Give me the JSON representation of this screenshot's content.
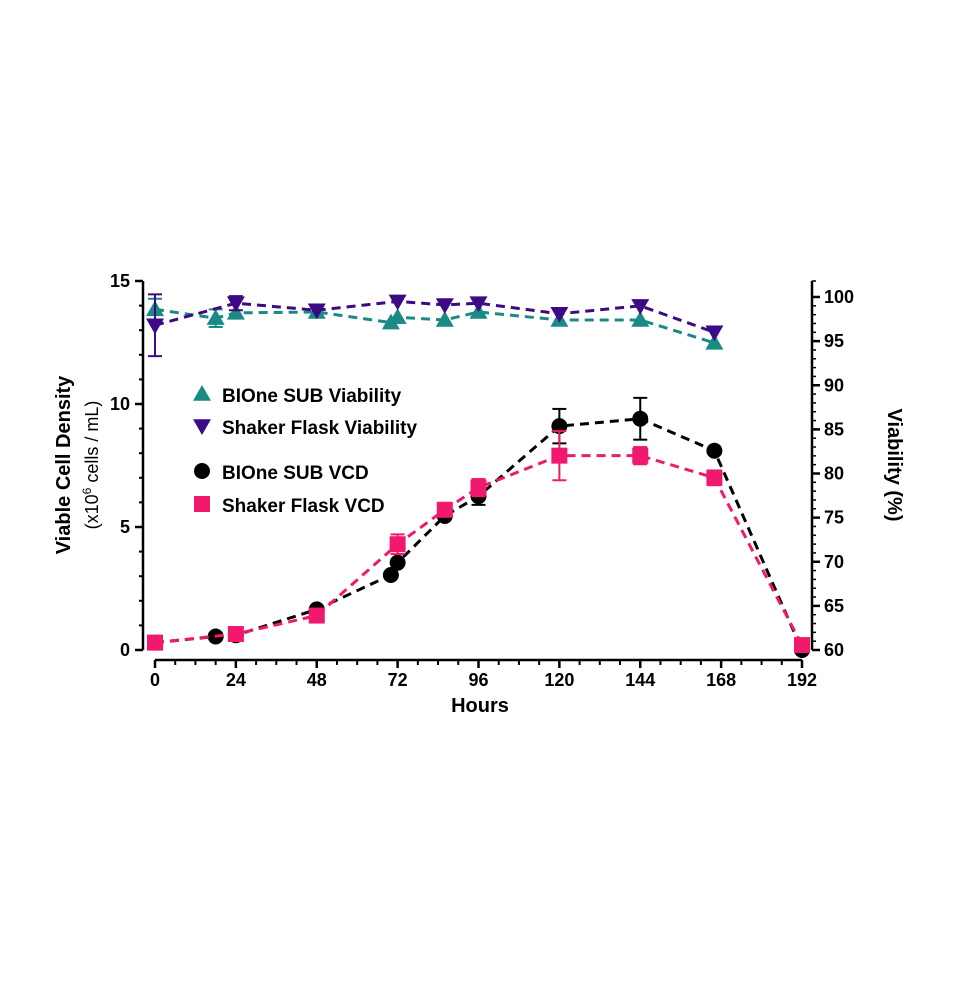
{
  "chart_data": {
    "type": "line",
    "xlabel": "Hours",
    "ylabel": "Viable Cell  Density",
    "ylabel_sub_prefix": "(x10",
    "ylabel_sub_sup": "6",
    "ylabel_sub_suffix": " cells / mL)",
    "y2label": "Viability (%)",
    "xlim": [
      0,
      192
    ],
    "ylim": [
      0,
      15
    ],
    "y2lim": [
      60,
      100
    ],
    "xticks": [
      0,
      24,
      48,
      72,
      96,
      120,
      144,
      168,
      192
    ],
    "yticks": [
      0,
      5,
      10,
      15
    ],
    "y2ticks": [
      60,
      65,
      70,
      75,
      80,
      85,
      90,
      95,
      100
    ],
    "grid": false,
    "legend_placement": "upper-left",
    "series": [
      {
        "name": "BIOne SUB Viability",
        "axis": "right",
        "marker": "triangle-up",
        "color": "#1a8a84",
        "x": [
          0,
          18,
          24,
          48,
          70,
          72,
          86,
          96,
          120,
          144,
          166
        ],
        "y": [
          98.6,
          97.6,
          98.2,
          98.3,
          97.1,
          97.7,
          97.4,
          98.3,
          97.4,
          97.4,
          94.8
        ],
        "err": [
          1.2,
          1.0,
          0,
          0,
          0,
          0,
          0,
          0,
          0,
          0,
          0
        ]
      },
      {
        "name": "Shaker Flask Viability",
        "axis": "right",
        "marker": "triangle-down",
        "color": "#3d0a85",
        "x": [
          0,
          24,
          48,
          72,
          86,
          96,
          120,
          144,
          166
        ],
        "y": [
          96.8,
          99.3,
          98.5,
          99.5,
          99.1,
          99.3,
          98.1,
          99.0,
          96.0
        ],
        "err": [
          3.5,
          0.8,
          0,
          0,
          0,
          0,
          0,
          0,
          0
        ]
      },
      {
        "name": "BIOne SUB VCD",
        "axis": "left",
        "marker": "circle",
        "color": "#000000",
        "x": [
          0,
          18,
          24,
          48,
          70,
          72,
          86,
          96,
          120,
          144,
          166,
          192
        ],
        "y": [
          0.3,
          0.55,
          0.6,
          1.65,
          3.05,
          3.55,
          5.45,
          6.25,
          9.1,
          9.4,
          8.1,
          0.0
        ],
        "err": [
          0,
          0,
          0,
          0,
          0,
          0,
          0,
          0.35,
          0.7,
          0.85,
          0,
          0
        ]
      },
      {
        "name": "Shaker Flask VCD",
        "axis": "left",
        "marker": "square",
        "color": "#f0196e",
        "x": [
          0,
          24,
          48,
          72,
          86,
          96,
          120,
          144,
          166,
          192
        ],
        "y": [
          0.3,
          0.65,
          1.4,
          4.3,
          5.7,
          6.6,
          7.9,
          7.9,
          7.0,
          0.2
        ],
        "err": [
          0,
          0,
          0,
          0.4,
          0,
          0.35,
          1.0,
          0.35,
          0.3,
          0
        ]
      }
    ]
  }
}
